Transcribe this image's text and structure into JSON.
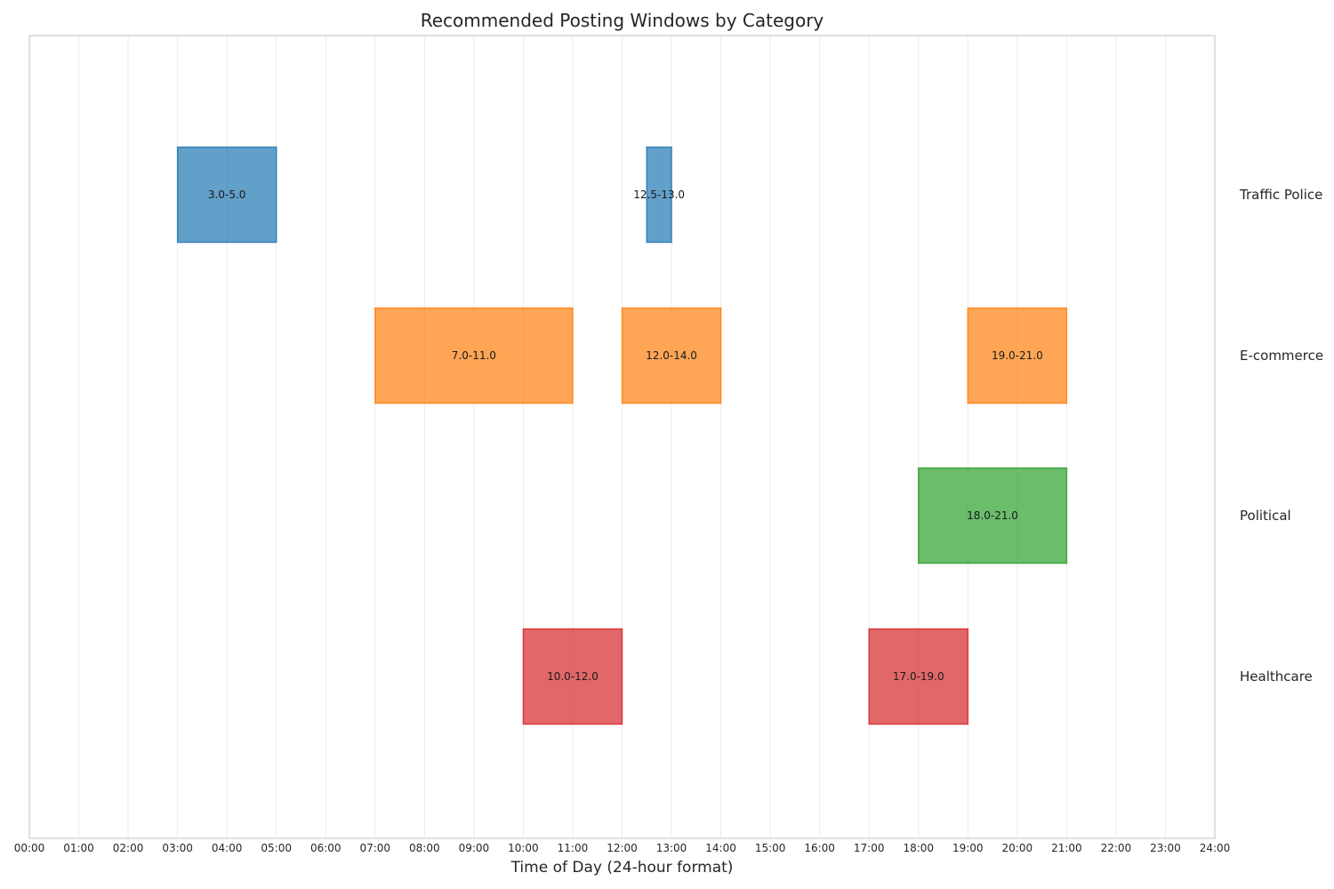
{
  "chart_data": {
    "type": "bar",
    "orientation": "horizontal-ranges",
    "title": "Recommended Posting Windows by Category",
    "xlabel": "Time of Day (24-hour format)",
    "ylabel": "",
    "xlim": [
      0,
      24
    ],
    "grid": true,
    "x_tick_labels": [
      "00:00",
      "01:00",
      "02:00",
      "03:00",
      "04:00",
      "05:00",
      "06:00",
      "07:00",
      "08:00",
      "09:00",
      "10:00",
      "11:00",
      "12:00",
      "13:00",
      "14:00",
      "15:00",
      "16:00",
      "17:00",
      "18:00",
      "19:00",
      "20:00",
      "21:00",
      "22:00",
      "23:00",
      "24:00"
    ],
    "categories": [
      "Traffic Police",
      "E-commerce",
      "Political",
      "Healthcare"
    ],
    "series": [
      {
        "category": "Traffic Police",
        "color": "#1f77b4",
        "windows": [
          {
            "start": 3.0,
            "end": 5.0,
            "label": "3.0-5.0"
          },
          {
            "start": 12.5,
            "end": 13.0,
            "label": "12.5-13.0"
          }
        ]
      },
      {
        "category": "E-commerce",
        "color": "#ff7f0e",
        "windows": [
          {
            "start": 7.0,
            "end": 11.0,
            "label": "7.0-11.0"
          },
          {
            "start": 12.0,
            "end": 14.0,
            "label": "12.0-14.0"
          },
          {
            "start": 19.0,
            "end": 21.0,
            "label": "19.0-21.0"
          }
        ]
      },
      {
        "category": "Political",
        "color": "#2ca02c",
        "windows": [
          {
            "start": 18.0,
            "end": 21.0,
            "label": "18.0-21.0"
          }
        ]
      },
      {
        "category": "Healthcare",
        "color": "#d62728",
        "windows": [
          {
            "start": 10.0,
            "end": 12.0,
            "label": "10.0-12.0"
          },
          {
            "start": 17.0,
            "end": 19.0,
            "label": "17.0-19.0"
          }
        ]
      }
    ]
  }
}
